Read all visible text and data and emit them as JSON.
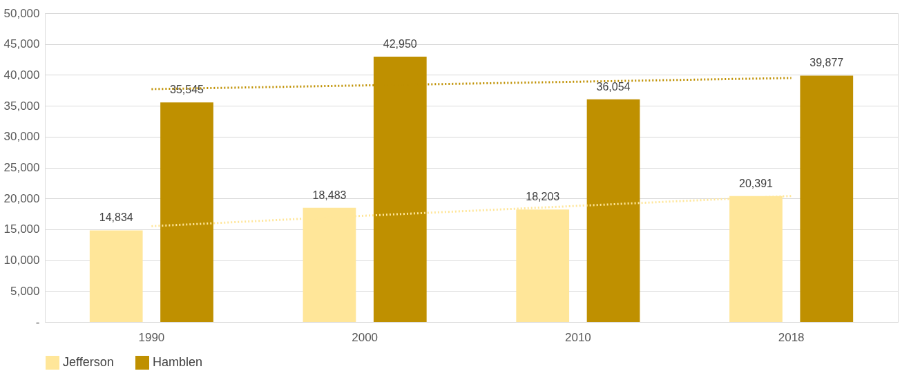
{
  "chart_data": {
    "type": "bar",
    "categories": [
      "1990",
      "2000",
      "2010",
      "2018"
    ],
    "series": [
      {
        "name": "Jefferson",
        "color": "#ffe699",
        "values": [
          14834,
          18483,
          18203,
          20391
        ],
        "value_labels": [
          "14,834",
          "18,483",
          "18,203",
          "20,391"
        ]
      },
      {
        "name": "Hamblen",
        "color": "#bf9000",
        "values": [
          35545,
          42950,
          36054,
          39877
        ],
        "value_labels": [
          "35,545",
          "42,950",
          "36,054",
          "39,877"
        ]
      },
      {
        "type": "line",
        "color": "#ffe699",
        "values": [
          15500,
          17200,
          18800,
          20400
        ],
        "line_style": "dotted"
      },
      {
        "type": "line",
        "color": "#bf9000",
        "values": [
          37700,
          38300,
          38900,
          39500
        ],
        "line_style": "dotted"
      }
    ],
    "ylim": [
      0,
      50000
    ],
    "yticks": [
      {
        "value": 0,
        "label": "-"
      },
      {
        "value": 5000,
        "label": "5,000"
      },
      {
        "value": 10000,
        "label": "10,000"
      },
      {
        "value": 15000,
        "label": "15,000"
      },
      {
        "value": 20000,
        "label": "20,000"
      },
      {
        "value": 25000,
        "label": "25,000"
      },
      {
        "value": 30000,
        "label": "30,000"
      },
      {
        "value": 35000,
        "label": "35,000"
      },
      {
        "value": 40000,
        "label": "40,000"
      },
      {
        "value": 45000,
        "label": "45,000"
      },
      {
        "value": 50000,
        "label": "50,000"
      }
    ],
    "grid": "y",
    "legend": "bottom"
  }
}
